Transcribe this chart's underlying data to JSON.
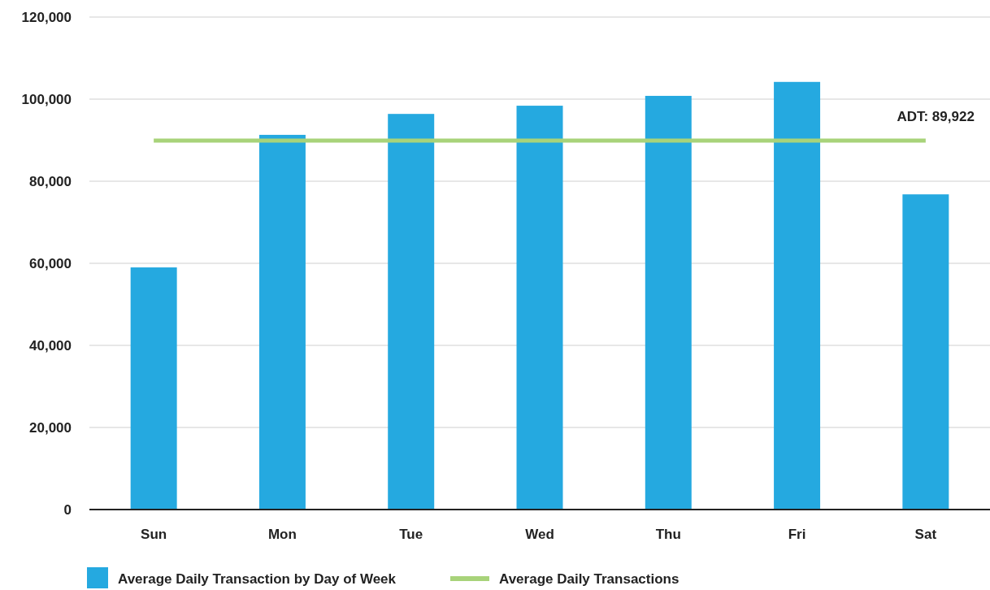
{
  "chart_data": {
    "type": "bar",
    "categories": [
      "Sun",
      "Mon",
      "Tue",
      "Wed",
      "Thu",
      "Fri",
      "Sat"
    ],
    "series": [
      {
        "name": "Average Daily Transaction by Day of Week",
        "color": "#25a9e0",
        "values": [
          59000,
          91300,
          96400,
          98400,
          100800,
          104200,
          76800
        ]
      },
      {
        "name": "Average Daily Transactions",
        "type": "line",
        "color": "#a8d37a",
        "values": [
          89922,
          89922,
          89922,
          89922,
          89922,
          89922,
          89922
        ]
      }
    ],
    "ylim": [
      0,
      120000
    ],
    "yticks": [
      {
        "value": 0,
        "label": "0"
      },
      {
        "value": 20000,
        "label": "20,000"
      },
      {
        "value": 40000,
        "label": "40,000"
      },
      {
        "value": 60000,
        "label": "60,000"
      },
      {
        "value": 80000,
        "label": "80,000"
      },
      {
        "value": 100000,
        "label": "100,000"
      },
      {
        "value": 120000,
        "label": "120,000"
      }
    ],
    "grid": "y",
    "legend": "bottom",
    "annotations": [
      {
        "text": "ADT: 89,922",
        "x": "Sat",
        "y": 89922
      }
    ]
  }
}
